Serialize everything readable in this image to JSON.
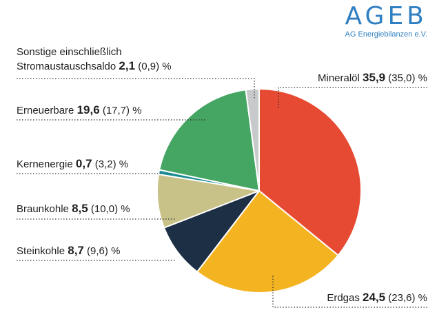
{
  "logo": {
    "main": "AGEB",
    "sub": "AG Energiebilanzen e.V."
  },
  "chart_data": {
    "type": "pie",
    "unit": "%",
    "slices": [
      {
        "name": "Mineralöl",
        "value": 35.9,
        "value_text": "35,9",
        "prev": "(35,0)",
        "color": "#e64a33"
      },
      {
        "name": "Erdgas",
        "value": 24.5,
        "value_text": "24,5",
        "prev": "(23,6)",
        "color": "#f4b321"
      },
      {
        "name": "Steinkohle",
        "value": 8.7,
        "value_text": "8,7",
        "prev": "(9,6)",
        "color": "#1c2f45"
      },
      {
        "name": "Braunkohle",
        "value": 8.5,
        "value_text": "8,5",
        "prev": "(10,0)",
        "color": "#c8c188"
      },
      {
        "name": "Kernenergie",
        "value": 0.7,
        "value_text": "0,7",
        "prev": "(3,2)",
        "color": "#1a8a93"
      },
      {
        "name": "Erneuerbare",
        "value": 19.6,
        "value_text": "19,6",
        "prev": "(17,7)",
        "color": "#45a563"
      },
      {
        "name_line1": "Sonstige einschließlich",
        "name": "Stromaustauschsaldo",
        "value": 2.1,
        "value_text": "2,1",
        "prev": "(0,9)",
        "color": "#c7c9cb"
      }
    ]
  }
}
